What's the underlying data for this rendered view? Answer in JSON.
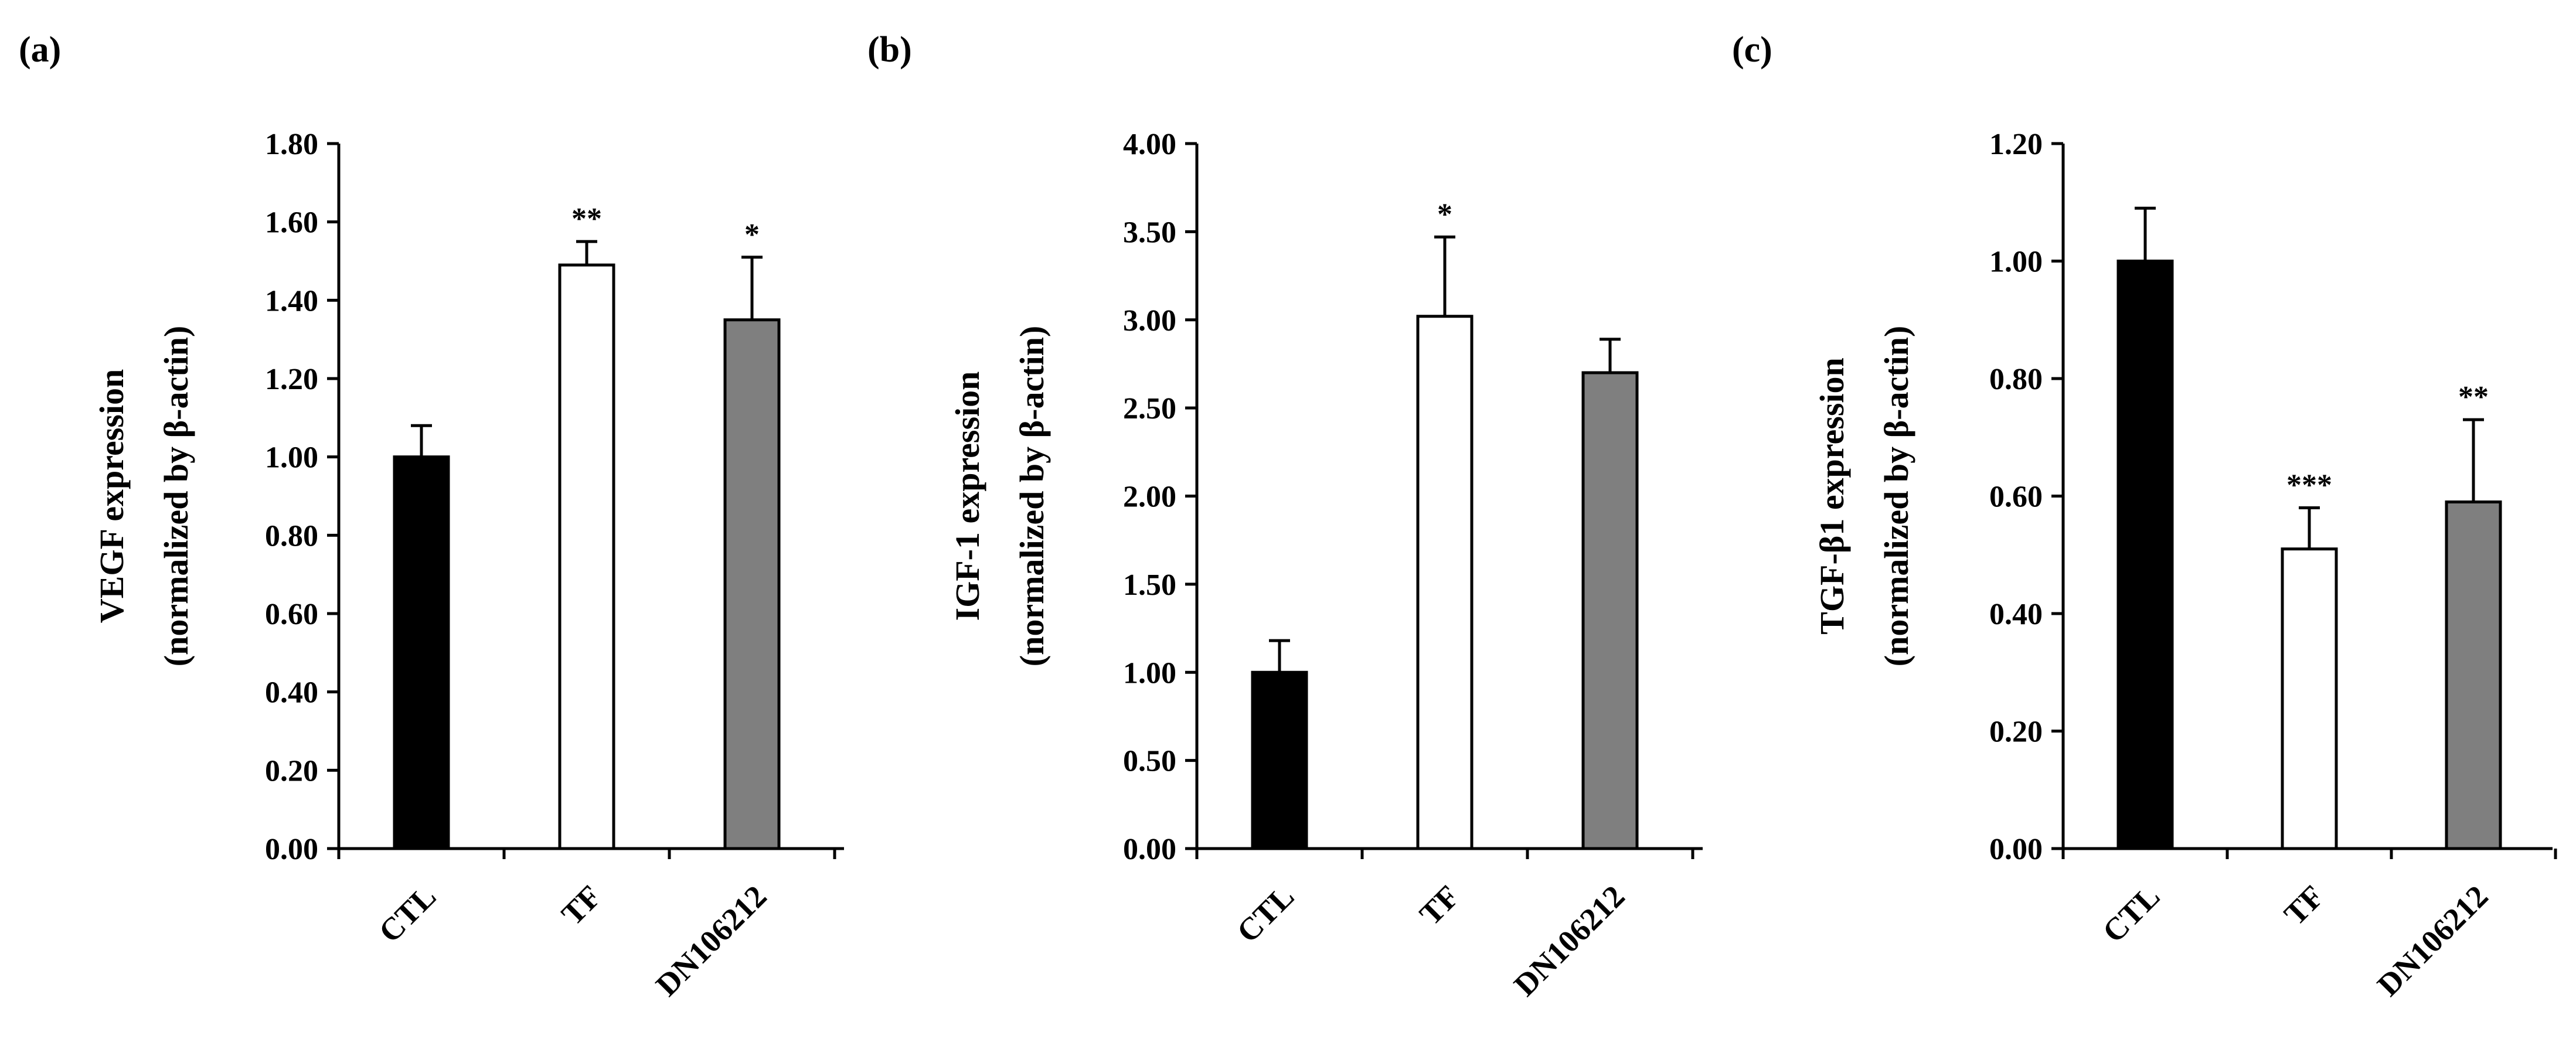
{
  "chart_data": [
    {
      "type": "bar",
      "panel_label": "(a)",
      "ylabel_lines": [
        "VEGF expression",
        "(normalized by β-actin)"
      ],
      "categories": [
        "CTL",
        "TF",
        "DN106212"
      ],
      "values": [
        1.0,
        1.49,
        1.35
      ],
      "errors": [
        0.08,
        0.06,
        0.16
      ],
      "significance": [
        "",
        "**",
        "*"
      ],
      "fill_colors": [
        "#000000",
        "#ffffff",
        "#7f7f7f"
      ],
      "ylim": [
        0,
        1.8
      ],
      "yticks": [
        0.0,
        0.2,
        0.4,
        0.6,
        0.8,
        1.0,
        1.2,
        1.4,
        1.6,
        1.8
      ],
      "ytick_labels": [
        "0.00",
        "0.20",
        "0.40",
        "0.60",
        "0.80",
        "1.00",
        "1.20",
        "1.40",
        "1.60",
        "1.80"
      ]
    },
    {
      "type": "bar",
      "panel_label": "(b)",
      "ylabel_lines": [
        "IGF-1 expression",
        "(normalized by β-actin)"
      ],
      "categories": [
        "CTL",
        "TF",
        "DN106212"
      ],
      "values": [
        1.0,
        3.02,
        2.7
      ],
      "errors": [
        0.18,
        0.45,
        0.19
      ],
      "significance": [
        "",
        "*",
        ""
      ],
      "fill_colors": [
        "#000000",
        "#ffffff",
        "#7f7f7f"
      ],
      "ylim": [
        0,
        4.0
      ],
      "yticks": [
        0.0,
        0.5,
        1.0,
        1.5,
        2.0,
        2.5,
        3.0,
        3.5,
        4.0
      ],
      "ytick_labels": [
        "0.00",
        "0.50",
        "1.00",
        "1.50",
        "2.00",
        "2.50",
        "3.00",
        "3.50",
        "4.00"
      ]
    },
    {
      "type": "bar",
      "panel_label": "(c)",
      "ylabel_lines": [
        "TGF-β1 expression",
        "(normalized by β-actin)"
      ],
      "categories": [
        "CTL",
        "TF",
        "DN106212"
      ],
      "values": [
        1.0,
        0.51,
        0.59
      ],
      "errors": [
        0.09,
        0.07,
        0.14
      ],
      "significance": [
        "",
        "***",
        "**"
      ],
      "fill_colors": [
        "#000000",
        "#ffffff",
        "#7f7f7f"
      ],
      "ylim": [
        0,
        1.2
      ],
      "yticks": [
        0.0,
        0.2,
        0.4,
        0.6,
        0.8,
        1.0,
        1.2
      ],
      "ytick_labels": [
        "0.00",
        "0.20",
        "0.40",
        "0.60",
        "0.80",
        "1.00",
        "1.20"
      ]
    }
  ]
}
